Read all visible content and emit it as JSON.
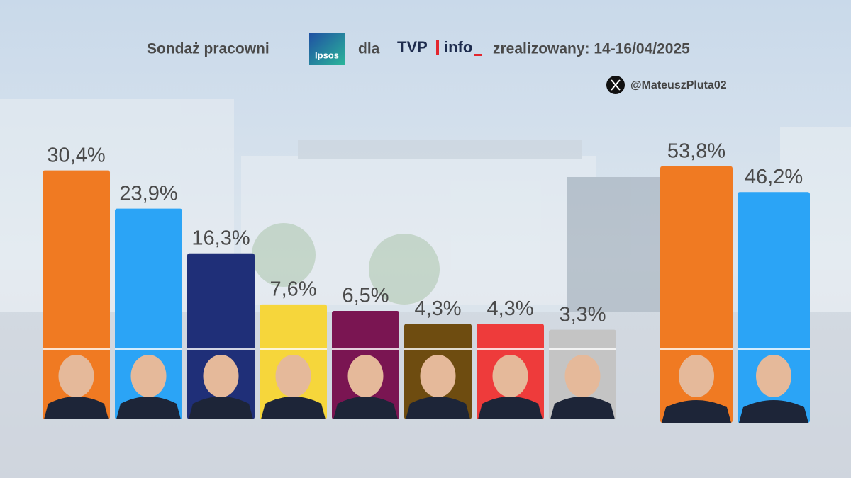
{
  "header": {
    "lead": "Sondaż pracowni",
    "pollster": "Ipsos",
    "connector": "dla",
    "media_brand": "TVP",
    "media_channel": "info",
    "dates": "zrealizowany: 14-16/04/2025",
    "handle": "@MateuszPluta02"
  },
  "chart_data": [
    {
      "type": "bar",
      "values": [
        30.4,
        23.9,
        16.3,
        7.6,
        6.5,
        4.3,
        4.3,
        3.3
      ],
      "value_labels": [
        "30,4%",
        "23,9%",
        "16,3%",
        "7,6%",
        "6,5%",
        "4,3%",
        "4,3%",
        "3,3%"
      ],
      "colors": [
        "#f07a22",
        "#2ba4f6",
        "#1f2f78",
        "#f6d63b",
        "#7a1552",
        "#6e4c10",
        "#ee3b3b",
        "#c4c4c4"
      ]
    },
    {
      "type": "bar",
      "values": [
        53.8,
        46.2
      ],
      "value_labels": [
        "53,8%",
        "46,2%"
      ],
      "colors": [
        "#f07a22",
        "#2ba4f6"
      ]
    }
  ]
}
